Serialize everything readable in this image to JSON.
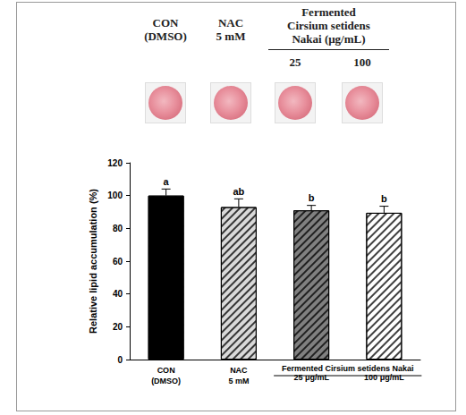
{
  "header": {
    "items": [
      "CON\n(DMSO)",
      "NAC\n5 mM"
    ],
    "group": {
      "label": "Fermented\nCirsium setidens\nNakai (μg/mL)",
      "items": [
        "25",
        "100"
      ]
    }
  },
  "chart_data": {
    "type": "bar",
    "y_label": "Relative lipid accumulation (%)",
    "categories": [
      "CON\n(DMSO)",
      "NAC\n5 mM",
      "25 μg/mL",
      "100 μg/mL"
    ],
    "category_group": {
      "label": "Fermented Cirsium setidens Nakai",
      "members": [
        "25 μg/mL",
        "100 μg/mL"
      ]
    },
    "values": [
      100,
      93,
      91,
      89.5
    ],
    "errors": [
      4,
      5,
      3,
      4
    ],
    "significance_letters": [
      "a",
      "ab",
      "b",
      "b"
    ],
    "colors": [
      "#000000",
      "#d9d9d9",
      "#808080",
      "#ffffff"
    ],
    "ylim": [
      0,
      120
    ],
    "yticks": [
      0,
      20,
      40,
      60,
      80,
      100,
      120
    ],
    "grid": false
  }
}
